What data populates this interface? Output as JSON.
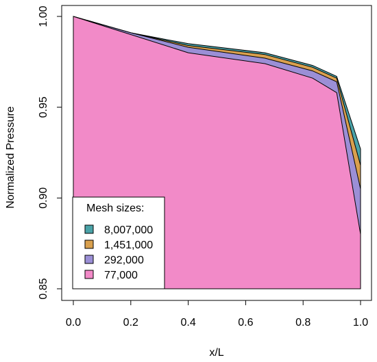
{
  "chart_data": {
    "type": "area",
    "title": "",
    "xlabel": "x/L",
    "ylabel": "Normalized Pressure",
    "xlim": [
      0.0,
      1.0
    ],
    "ylim": [
      0.85,
      1.0
    ],
    "xticks": [
      "0.0",
      "0.2",
      "0.4",
      "0.6",
      "0.8",
      "1.0"
    ],
    "yticks": [
      "0.85",
      "0.90",
      "0.95",
      "1.00"
    ],
    "grid": false,
    "legend": {
      "title": "Mesh sizes:",
      "placement": "bottom-left"
    },
    "x": [
      0.0,
      0.2,
      0.4,
      0.667,
      0.833,
      0.917,
      1.0
    ],
    "series": [
      {
        "name": "8,007,000",
        "color": "#4aa3a8",
        "values": [
          1.0,
          0.991,
          0.985,
          0.98,
          0.973,
          0.967,
          0.927
        ]
      },
      {
        "name": "1,451,000",
        "color": "#d9a04e",
        "values": [
          1.0,
          0.991,
          0.984,
          0.979,
          0.972,
          0.966,
          0.918
        ]
      },
      {
        "name": "292,000",
        "color": "#9b8fd6",
        "values": [
          1.0,
          0.991,
          0.983,
          0.977,
          0.97,
          0.964,
          0.905
        ]
      },
      {
        "name": "77,000",
        "color": "#f28ac8",
        "values": [
          1.0,
          0.99,
          0.98,
          0.974,
          0.966,
          0.958,
          0.88
        ]
      }
    ]
  }
}
